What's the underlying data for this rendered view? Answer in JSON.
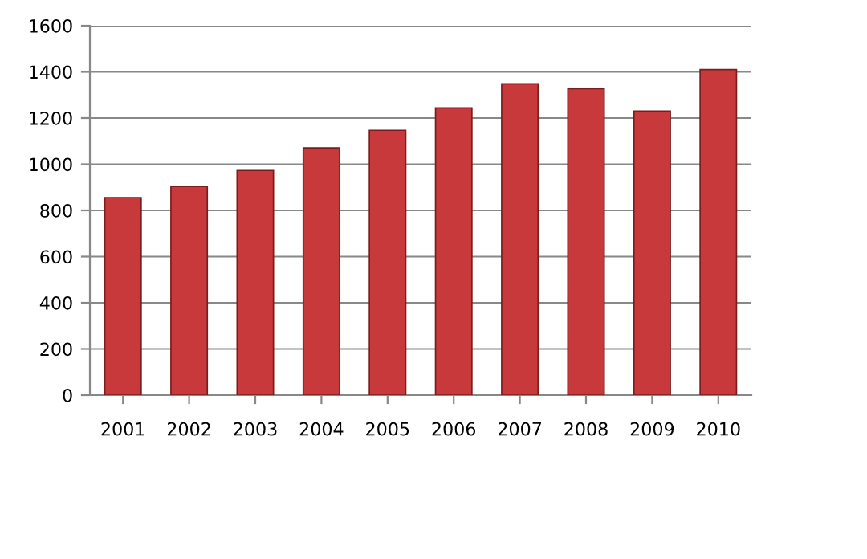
{
  "chart_data": {
    "type": "bar",
    "categories": [
      "2001",
      "2002",
      "2003",
      "2004",
      "2005",
      "2006",
      "2007",
      "2008",
      "2009",
      "2010"
    ],
    "values": [
      855,
      904,
      973,
      1071,
      1147,
      1244,
      1348,
      1327,
      1230,
      1410
    ],
    "color": "#c8393b",
    "ylim": [
      0,
      1600
    ],
    "yticks": [
      0,
      200,
      400,
      600,
      800,
      1000,
      1200,
      1400,
      1600
    ],
    "grid": "y"
  }
}
